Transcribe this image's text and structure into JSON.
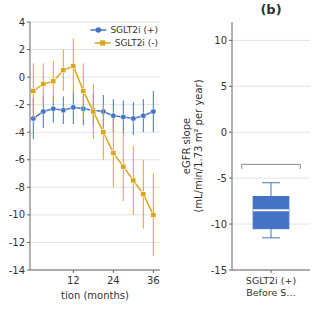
{
  "chart_data": [
    {
      "type": "line",
      "xlabel": "tion (months)",
      "x": [
        0,
        3,
        6,
        9,
        12,
        15,
        18,
        21,
        24,
        27,
        30,
        33,
        36
      ],
      "series": [
        {
          "name": "SGLT2i (+)",
          "color": "#4472C4",
          "marker": "circle",
          "values": [
            -3.0,
            -2.5,
            -2.3,
            -2.4,
            -2.2,
            -2.3,
            -2.4,
            -2.5,
            -2.8,
            -2.9,
            -3.0,
            -2.8,
            -2.5
          ],
          "errors": [
            1.5,
            1.2,
            1.0,
            1.0,
            1.2,
            1.2,
            1.2,
            1.2,
            1.2,
            1.2,
            1.2,
            1.2,
            1.5
          ]
        },
        {
          "name": "SGLT2i (-)",
          "color": "#DAA520",
          "marker": "square",
          "values": [
            -1.0,
            -0.5,
            -0.3,
            0.5,
            0.8,
            -1.0,
            -2.5,
            -4.0,
            -5.5,
            -6.5,
            -7.5,
            -8.5,
            -10.0
          ],
          "errors": [
            2.0,
            1.5,
            1.5,
            1.5,
            2.0,
            2.0,
            2.0,
            2.0,
            2.5,
            2.5,
            2.5,
            2.5,
            3.0
          ]
        }
      ],
      "xlim": [
        -1,
        38
      ],
      "xticks": [
        12,
        24,
        36
      ],
      "ylim": [
        -14,
        4
      ],
      "yticks": [
        -14,
        -12,
        -10,
        -8,
        -6,
        -4,
        -2,
        0,
        2,
        4
      ],
      "grid": true,
      "legend": "upper right"
    },
    {
      "type": "box",
      "title": "(b)",
      "ylabel": "eGFR slope\n(mL/min/1.73 m² per year)",
      "categories": [
        "SGLT2i (+)\nBefore S…"
      ],
      "values": [
        {
          "whislo": -11.5,
          "q1": -10.5,
          "median": -8.5,
          "q3": -7.0,
          "whishi": -5.5
        }
      ],
      "color": "#4472C4",
      "bracket": {
        "y": -3.5,
        "end": -4.0
      },
      "ylim": [
        -15,
        12
      ],
      "yticks": [
        -15,
        -10,
        -5,
        0,
        5,
        10
      ],
      "grid": true
    }
  ]
}
